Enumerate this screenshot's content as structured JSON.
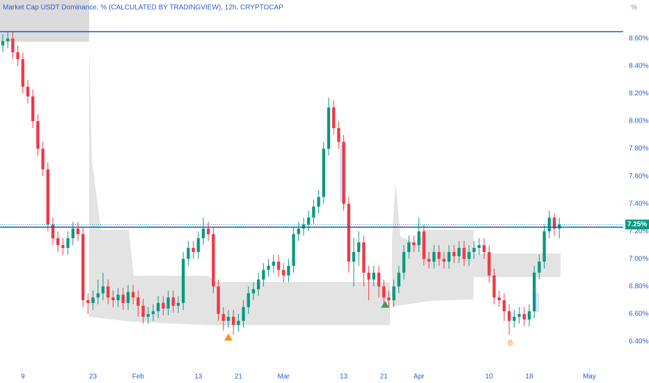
{
  "chart_data": {
    "type": "candlestick",
    "title": "Market Cap USDT Dominance, % (CALCULATED BY TRADINGVIEW), 12h, CRYPTOCAP",
    "y_unit": "%",
    "open": [
      8.55,
      8.58,
      8.6,
      8.5,
      8.45,
      8.25,
      8.18,
      8.0,
      7.8,
      7.65,
      7.25,
      7.15,
      7.1,
      7.08,
      7.15,
      7.22,
      7.18,
      6.7,
      6.68,
      6.72,
      6.75,
      6.8,
      6.72,
      6.7,
      6.74,
      6.68,
      6.76,
      6.72,
      6.66,
      6.58,
      6.6,
      6.62,
      6.68,
      6.64,
      6.72,
      6.66,
      6.68,
      7.0,
      7.08,
      7.05,
      7.15,
      7.22,
      7.18,
      6.8,
      6.6,
      6.55,
      6.58,
      6.52,
      6.55,
      6.65,
      6.75,
      6.78,
      6.85,
      6.92,
      6.95,
      6.98,
      6.92,
      6.88,
      6.95,
      7.18,
      7.22,
      7.25,
      7.3,
      7.38,
      7.45,
      7.8,
      8.1,
      7.95,
      7.85,
      7.4,
      6.98,
      7.05,
      7.12,
      6.9,
      6.85,
      6.9,
      6.8,
      6.72,
      6.7,
      6.8,
      6.9,
      7.05,
      7.12,
      7.1,
      7.2,
      7.0,
      6.98,
      7.05,
      7.0,
      6.98,
      7.05,
      7.02,
      7.08,
      7.0,
      7.05,
      7.08,
      7.1,
      7.05,
      6.88,
      6.72,
      6.7,
      6.62,
      6.55,
      6.58,
      6.6,
      6.56,
      6.62,
      6.9,
      6.98,
      7.2,
      7.3,
      7.22
    ],
    "high": [
      8.63,
      8.65,
      8.65,
      8.55,
      8.5,
      8.3,
      8.23,
      8.05,
      7.85,
      7.7,
      7.3,
      7.2,
      7.15,
      7.2,
      7.27,
      7.27,
      7.23,
      6.75,
      6.77,
      6.85,
      6.9,
      6.85,
      6.77,
      6.79,
      6.79,
      6.81,
      6.81,
      6.77,
      6.71,
      6.65,
      6.67,
      6.73,
      6.73,
      6.77,
      6.77,
      6.73,
      7.05,
      7.13,
      7.13,
      7.2,
      7.3,
      7.27,
      7.23,
      6.85,
      6.65,
      6.63,
      6.63,
      6.6,
      6.7,
      6.8,
      6.83,
      6.9,
      6.97,
      7.0,
      7.03,
      7.03,
      6.97,
      7.0,
      7.23,
      7.27,
      7.3,
      7.35,
      7.43,
      7.5,
      7.85,
      8.17,
      8.15,
      8.0,
      7.9,
      7.45,
      7.15,
      7.2,
      7.17,
      6.95,
      6.95,
      6.95,
      6.85,
      6.77,
      6.85,
      6.95,
      7.1,
      7.17,
      7.17,
      7.3,
      7.25,
      7.05,
      7.1,
      7.1,
      7.05,
      7.1,
      7.1,
      7.13,
      7.13,
      7.1,
      7.13,
      7.15,
      7.15,
      7.1,
      6.93,
      6.77,
      6.75,
      6.67,
      6.63,
      6.65,
      6.65,
      6.67,
      6.95,
      7.03,
      7.25,
      7.35,
      7.33,
      7.3
    ],
    "low": [
      8.5,
      8.53,
      8.45,
      8.4,
      8.2,
      8.13,
      7.95,
      7.75,
      7.6,
      7.2,
      7.1,
      7.05,
      7.03,
      7.03,
      7.1,
      7.13,
      6.65,
      6.6,
      6.63,
      6.67,
      6.7,
      6.67,
      6.65,
      6.65,
      6.63,
      6.63,
      6.67,
      6.58,
      6.53,
      6.53,
      6.55,
      6.57,
      6.59,
      6.59,
      6.61,
      6.61,
      6.63,
      6.95,
      7.0,
      7.0,
      7.1,
      7.13,
      6.75,
      6.55,
      6.48,
      6.5,
      6.45,
      6.47,
      6.5,
      6.6,
      6.7,
      6.73,
      6.8,
      6.87,
      6.9,
      6.87,
      6.83,
      6.83,
      6.9,
      7.13,
      7.17,
      7.2,
      7.25,
      7.33,
      7.4,
      7.75,
      7.9,
      7.8,
      7.35,
      6.9,
      6.8,
      6.95,
      6.8,
      6.7,
      6.8,
      6.72,
      6.67,
      6.65,
      6.65,
      6.75,
      6.85,
      7.0,
      7.05,
      7.05,
      6.95,
      6.93,
      6.93,
      6.95,
      6.93,
      6.93,
      6.97,
      6.97,
      6.95,
      6.95,
      7.0,
      7.03,
      7.0,
      6.83,
      6.67,
      6.65,
      6.55,
      6.45,
      6.5,
      6.53,
      6.51,
      6.51,
      6.57,
      6.85,
      6.93,
      7.15,
      7.17,
      7.15
    ],
    "close": [
      8.58,
      8.6,
      8.5,
      8.45,
      8.25,
      8.18,
      8.0,
      7.8,
      7.65,
      7.25,
      7.15,
      7.1,
      7.08,
      7.15,
      7.22,
      7.18,
      6.7,
      6.68,
      6.72,
      6.75,
      6.8,
      6.72,
      6.7,
      6.74,
      6.68,
      6.76,
      6.72,
      6.66,
      6.58,
      6.6,
      6.62,
      6.68,
      6.64,
      6.72,
      6.66,
      6.68,
      7.0,
      7.08,
      7.05,
      7.15,
      7.22,
      7.18,
      6.8,
      6.6,
      6.55,
      6.58,
      6.52,
      6.55,
      6.65,
      6.75,
      6.78,
      6.85,
      6.92,
      6.95,
      6.98,
      6.92,
      6.88,
      6.95,
      7.18,
      7.22,
      7.25,
      7.3,
      7.38,
      7.45,
      7.8,
      8.1,
      7.95,
      7.85,
      7.4,
      6.98,
      7.05,
      7.12,
      6.9,
      6.85,
      6.9,
      6.8,
      6.72,
      6.7,
      6.8,
      6.9,
      7.05,
      7.12,
      7.1,
      7.2,
      7.0,
      6.98,
      7.05,
      7.0,
      6.98,
      7.05,
      7.02,
      7.08,
      7.0,
      7.05,
      7.08,
      7.1,
      7.05,
      6.88,
      6.72,
      6.7,
      6.62,
      6.55,
      6.58,
      6.6,
      6.56,
      6.62,
      6.9,
      6.98,
      7.2,
      7.3,
      7.22,
      7.25
    ],
    "last_label": "7.25%",
    "up_color": "#089981",
    "down_color": "#f23645",
    "levels": [
      8.65,
      7.23
    ],
    "level_color": "#1e4fd6",
    "xlim": [
      -0.55,
      123.75
    ],
    "xticks": [
      {
        "value": 4,
        "label": "9"
      },
      {
        "value": 18,
        "label": "23"
      },
      {
        "value": 27,
        "label": "Feb"
      },
      {
        "value": 39,
        "label": "13"
      },
      {
        "value": 47,
        "label": "21"
      },
      {
        "value": 56,
        "label": "Mar"
      },
      {
        "value": 68,
        "label": "13"
      },
      {
        "value": 76,
        "label": "21"
      },
      {
        "value": 83,
        "label": "Apr"
      },
      {
        "value": 97,
        "label": "10"
      },
      {
        "value": 105,
        "label": "18"
      },
      {
        "value": 117,
        "label": "May"
      }
    ],
    "ylim": [
      6.2,
      8.88
    ],
    "yticks": [
      {
        "value": 6.4,
        "label": "6.40%"
      },
      {
        "value": 6.6,
        "label": "6.60%"
      },
      {
        "value": 6.8,
        "label": "6.80%"
      },
      {
        "value": 7.0,
        "label": "7.00%"
      },
      {
        "value": 7.2,
        "label": "7.20%"
      },
      {
        "value": 7.4,
        "label": "7.40%"
      },
      {
        "value": 7.6,
        "label": "7.60%"
      },
      {
        "value": 7.8,
        "label": "7.80%"
      },
      {
        "value": 8.0,
        "label": "8.00%"
      },
      {
        "value": 8.2,
        "label": "8.20%"
      },
      {
        "value": 8.4,
        "label": "8.40%"
      },
      {
        "value": 8.6,
        "label": "8.60%"
      }
    ],
    "grid": false,
    "annotation": "B"
  }
}
